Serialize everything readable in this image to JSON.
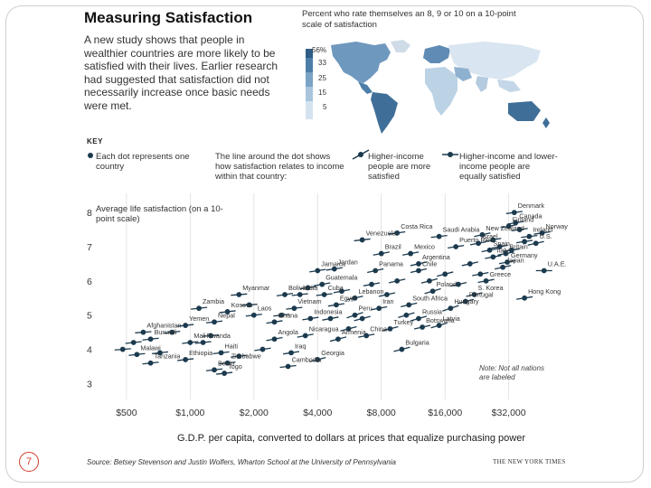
{
  "header": {
    "title": "Measuring Satisfaction",
    "intro": "A new study shows that people in wealthier countries are more likely to be satisfied with their lives. Earlier research had suggested that satisfaction did not necessarily increase once basic needs were met."
  },
  "map": {
    "caption": "Percent who rate themselves an 8, 9 or 10 on a 10-point scale of satisfaction",
    "legend": [
      "56%",
      "33",
      "25",
      "15",
      "5"
    ],
    "legend_colors": [
      "#2f5d86",
      "#4d7ea8",
      "#7aa3c6",
      "#a9c5dd",
      "#d4e3ef"
    ]
  },
  "key": {
    "title": "KEY",
    "items": [
      {
        "text": "Each dot represents one country"
      },
      {
        "text": "The line around the dot shows how satisfaction relates to income within that country:"
      },
      {
        "text": "Higher-income people are more satisfied"
      },
      {
        "text": "Higher-income and lower-income people are equally satisfied"
      }
    ]
  },
  "footer": {
    "note": "Note: Not all nations are labeled",
    "source": "Source: Betsey Stevenson and Justin Wolfers, Wharton School at the University of Pennsylvania",
    "credit": "THE NEW YORK TIMES",
    "page_number": "7"
  },
  "colors": {
    "dot": "#1c3a4e",
    "axis": "#888888",
    "grid": "#dddddd"
  },
  "chart_data": {
    "type": "scatter",
    "title": "Measuring Satisfaction",
    "xlabel": "G.D.P. per capita, converted to dollars at prices that equalize purchasing power",
    "ylabel": "Average life satisfaction (on a 10-point scale)",
    "x_scale": "log",
    "x_ticks": [
      500,
      1000,
      2000,
      4000,
      8000,
      16000,
      32000
    ],
    "x_tick_labels": [
      "$500",
      "$1,000",
      "$2,000",
      "$4,000",
      "$8,000",
      "$16,000",
      "$32,000"
    ],
    "y_ticks": [
      3,
      4,
      5,
      6,
      7,
      8
    ],
    "xlim": [
      380,
      52000
    ],
    "ylim": [
      2.8,
      8.4
    ],
    "points": [
      {
        "label": "Denmark",
        "x": 34000,
        "y": 8.0,
        "slope": 0.35
      },
      {
        "label": "Canada",
        "x": 34500,
        "y": 7.7,
        "slope": 0.45
      },
      {
        "label": "Finland",
        "x": 32000,
        "y": 7.6,
        "slope": 0.5
      },
      {
        "label": "Norway",
        "x": 46000,
        "y": 7.4,
        "slope": 0.4
      },
      {
        "label": "Ireland",
        "x": 40000,
        "y": 7.3,
        "slope": 0.3
      },
      {
        "label": "U.S.",
        "x": 43000,
        "y": 7.1,
        "slope": 0.6
      },
      {
        "label": "Costa Rica",
        "x": 9500,
        "y": 7.4,
        "slope": 0.4
      },
      {
        "label": "Saudi Arabia",
        "x": 15000,
        "y": 7.3,
        "slope": 0.3
      },
      {
        "label": "New Zealand",
        "x": 24000,
        "y": 7.35,
        "slope": 0.6
      },
      {
        "label": "Israel",
        "x": 23000,
        "y": 7.1,
        "slope": 0.5
      },
      {
        "label": "Puerto Rico",
        "x": 18000,
        "y": 7.0,
        "slope": 0.4
      },
      {
        "label": "Spain",
        "x": 26000,
        "y": 6.9,
        "slope": 0.5
      },
      {
        "label": "Italy",
        "x": 27000,
        "y": 6.7,
        "slope": 0.5
      },
      {
        "label": "Britain",
        "x": 31000,
        "y": 6.8,
        "slope": 0.5
      },
      {
        "label": "Germany",
        "x": 31500,
        "y": 6.55,
        "slope": 0.5
      },
      {
        "label": "Japan",
        "x": 30000,
        "y": 6.4,
        "slope": 0.6
      },
      {
        "label": "U.A.E.",
        "x": 47000,
        "y": 6.3,
        "slope": 0.0
      },
      {
        "label": "Venezuela",
        "x": 6500,
        "y": 7.2,
        "slope": 0.3
      },
      {
        "label": "Brazil",
        "x": 8000,
        "y": 6.8,
        "slope": 0.5
      },
      {
        "label": "Mexico",
        "x": 11000,
        "y": 6.8,
        "slope": 0.5
      },
      {
        "label": "Argentina",
        "x": 12000,
        "y": 6.5,
        "slope": 0.6
      },
      {
        "label": "Chile",
        "x": 12000,
        "y": 6.3,
        "slope": 0.6
      },
      {
        "label": "Jamaica",
        "x": 4000,
        "y": 6.3,
        "slope": 0.4
      },
      {
        "label": "Jordan",
        "x": 4800,
        "y": 6.35,
        "slope": 0.4
      },
      {
        "label": "Panama",
        "x": 7500,
        "y": 6.3,
        "slope": 0.6
      },
      {
        "label": "Greece",
        "x": 25000,
        "y": 6.0,
        "slope": 0.5
      },
      {
        "label": "Poland",
        "x": 14000,
        "y": 5.7,
        "slope": 0.8
      },
      {
        "label": "S. Korea",
        "x": 22000,
        "y": 5.6,
        "slope": 0.6
      },
      {
        "label": "Portugal",
        "x": 20000,
        "y": 5.4,
        "slope": 0.7
      },
      {
        "label": "Hungary",
        "x": 17000,
        "y": 5.2,
        "slope": 0.9
      },
      {
        "label": "Hong Kong",
        "x": 38000,
        "y": 5.5,
        "slope": 0.4
      },
      {
        "label": "Guatemala",
        "x": 4200,
        "y": 5.9,
        "slope": 0.5
      },
      {
        "label": "Myanmar",
        "x": 1700,
        "y": 5.6,
        "slope": 0.2
      },
      {
        "label": "Bolivia",
        "x": 2800,
        "y": 5.6,
        "slope": 0.4
      },
      {
        "label": "India",
        "x": 3300,
        "y": 5.6,
        "slope": 0.3
      },
      {
        "label": "Cuba",
        "x": 4300,
        "y": 5.6,
        "slope": 0.3
      },
      {
        "label": "Lebanon",
        "x": 6000,
        "y": 5.5,
        "slope": 0.6
      },
      {
        "label": "Egypt",
        "x": 4900,
        "y": 5.3,
        "slope": 0.4
      },
      {
        "label": "Iran",
        "x": 7800,
        "y": 5.2,
        "slope": 0.5
      },
      {
        "label": "Peru",
        "x": 6000,
        "y": 5.0,
        "slope": 0.9
      },
      {
        "label": "South Africa",
        "x": 10800,
        "y": 5.3,
        "slope": 0.6
      },
      {
        "label": "Russia",
        "x": 12000,
        "y": 4.9,
        "slope": 0.8
      },
      {
        "label": "Latvia",
        "x": 15000,
        "y": 4.7,
        "slope": 0.8
      },
      {
        "label": "Kosovo",
        "x": 1500,
        "y": 5.1,
        "slope": 0.3
      },
      {
        "label": "Laos",
        "x": 2000,
        "y": 5.0,
        "slope": 0.3
      },
      {
        "label": "Nepal",
        "x": 1300,
        "y": 4.8,
        "slope": 0.3
      },
      {
        "label": "Ghana",
        "x": 2500,
        "y": 4.8,
        "slope": 0.4
      },
      {
        "label": "Vietnam",
        "x": 3100,
        "y": 5.2,
        "slope": 0.3
      },
      {
        "label": "Indonesia",
        "x": 3700,
        "y": 4.9,
        "slope": 0.4
      },
      {
        "label": "China",
        "x": 6800,
        "y": 4.4,
        "slope": 0.5
      },
      {
        "label": "Turkey",
        "x": 8800,
        "y": 4.6,
        "slope": 0.7
      },
      {
        "label": "Botswana",
        "x": 12500,
        "y": 4.65,
        "slope": 0.6
      },
      {
        "label": "Armenia",
        "x": 5000,
        "y": 4.3,
        "slope": 0.7
      },
      {
        "label": "Nicaragua",
        "x": 3500,
        "y": 4.4,
        "slope": 0.5
      },
      {
        "label": "Zambia",
        "x": 1100,
        "y": 5.2,
        "slope": 0.3
      },
      {
        "label": "Yemen",
        "x": 950,
        "y": 4.7,
        "slope": 0.3
      },
      {
        "label": "Afghanistan",
        "x": 600,
        "y": 4.5,
        "slope": 0.2
      },
      {
        "label": "Burundi",
        "x": 650,
        "y": 4.3,
        "slope": 0.3
      },
      {
        "label": "Mali",
        "x": 1000,
        "y": 4.2,
        "slope": 0.3
      },
      {
        "label": "Rwanda",
        "x": 1150,
        "y": 4.2,
        "slope": 0.3
      },
      {
        "label": "Angola",
        "x": 2500,
        "y": 4.3,
        "slope": 0.5
      },
      {
        "label": "Haiti",
        "x": 1400,
        "y": 3.9,
        "slope": 0.3
      },
      {
        "label": "Malawi",
        "x": 560,
        "y": 3.85,
        "slope": 0.3
      },
      {
        "label": "Tanzania",
        "x": 650,
        "y": 3.6,
        "slope": 0.3
      },
      {
        "label": "Ethiopia",
        "x": 950,
        "y": 3.7,
        "slope": 0.3
      },
      {
        "label": "Zimbabwe",
        "x": 1500,
        "y": 3.6,
        "slope": 0.3
      },
      {
        "label": "Iraq",
        "x": 3000,
        "y": 3.9,
        "slope": 0.4
      },
      {
        "label": "Georgia",
        "x": 4000,
        "y": 3.7,
        "slope": 0.7
      },
      {
        "label": "Cambodia",
        "x": 2900,
        "y": 3.5,
        "slope": 0.3
      },
      {
        "label": "Benin",
        "x": 1300,
        "y": 3.4,
        "slope": 0.3
      },
      {
        "label": "Togo",
        "x": 1450,
        "y": 3.3,
        "slope": 0.3
      },
      {
        "label": "Bulgaria",
        "x": 10000,
        "y": 4.0,
        "slope": 0.7
      },
      {
        "label": "",
        "x": 480,
        "y": 4.0,
        "slope": 0.2
      },
      {
        "label": "",
        "x": 540,
        "y": 4.2,
        "slope": 0.3
      },
      {
        "label": "",
        "x": 720,
        "y": 3.9,
        "slope": 0.3
      },
      {
        "label": "",
        "x": 820,
        "y": 4.5,
        "slope": 0.3
      },
      {
        "label": "",
        "x": 1250,
        "y": 4.4,
        "slope": 0.2
      },
      {
        "label": "",
        "x": 1700,
        "y": 3.8,
        "slope": 0.3
      },
      {
        "label": "",
        "x": 1900,
        "y": 5.3,
        "slope": 0.2
      },
      {
        "label": "",
        "x": 2200,
        "y": 4.0,
        "slope": 0.4
      },
      {
        "label": "",
        "x": 2700,
        "y": 5.0,
        "slope": 0.3
      },
      {
        "label": "",
        "x": 3600,
        "y": 5.8,
        "slope": 0.4
      },
      {
        "label": "",
        "x": 4600,
        "y": 4.9,
        "slope": 0.5
      },
      {
        "label": "",
        "x": 5200,
        "y": 5.7,
        "slope": 0.5
      },
      {
        "label": "",
        "x": 5600,
        "y": 4.6,
        "slope": 0.7
      },
      {
        "label": "",
        "x": 6500,
        "y": 4.9,
        "slope": 0.7
      },
      {
        "label": "",
        "x": 7200,
        "y": 5.9,
        "slope": 0.5
      },
      {
        "label": "",
        "x": 8500,
        "y": 5.6,
        "slope": 0.6
      },
      {
        "label": "",
        "x": 9500,
        "y": 6.0,
        "slope": 0.6
      },
      {
        "label": "",
        "x": 10500,
        "y": 5.0,
        "slope": 0.8
      },
      {
        "label": "",
        "x": 13500,
        "y": 6.0,
        "slope": 0.7
      },
      {
        "label": "",
        "x": 16000,
        "y": 6.2,
        "slope": 0.7
      },
      {
        "label": "",
        "x": 18500,
        "y": 5.9,
        "slope": 0.6
      },
      {
        "label": "",
        "x": 21000,
        "y": 6.5,
        "slope": 0.6
      },
      {
        "label": "",
        "x": 23500,
        "y": 6.2,
        "slope": 0.5
      },
      {
        "label": "",
        "x": 27000,
        "y": 7.2,
        "slope": 0.5
      },
      {
        "label": "",
        "x": 29000,
        "y": 7.0,
        "slope": 0.5
      },
      {
        "label": "",
        "x": 33000,
        "y": 6.9,
        "slope": 0.4
      },
      {
        "label": "",
        "x": 36000,
        "y": 7.5,
        "slope": 0.4
      },
      {
        "label": "",
        "x": 38000,
        "y": 7.15,
        "slope": 0.4
      }
    ]
  }
}
